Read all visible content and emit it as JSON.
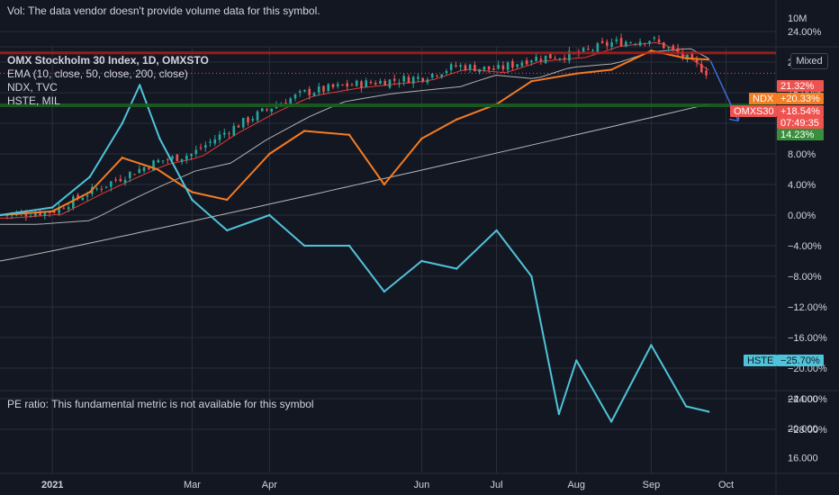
{
  "header": {
    "vol_notice": "Vol: The data vendor doesn't provide volume data for this symbol.",
    "volume_scale_label": "10M",
    "symbol_title": "OMX Stockholm 30 Index, 1D, OMXSTO",
    "ema_label": "EMA (10, close, 50, close, 200, close)",
    "ndx_label": "NDX, TVC",
    "hste_label": "HSTE, MIL",
    "mixed_button": "Mixed",
    "pe_notice": "PE ratio: This fundamental metric is not available for this symbol"
  },
  "colors": {
    "background": "#131722",
    "grid": "#2a2e39",
    "omx_up": "#26a69a",
    "omx_down": "#ef5350",
    "ndx": "#f57c22",
    "hste": "#4fc3d9",
    "ema_fast": "#e53935",
    "ema_mid": "#b0b0b0",
    "ema_slow": "#b8b8b8",
    "projection_arrow": "#3d6bd6",
    "resistance_line": "#b71c1c",
    "support_line": "#1b5e20"
  },
  "price_badges": {
    "omx_pct": "21.32%",
    "ndx_name": "NDX",
    "ndx_pct": "+20.33%",
    "omx_name": "OMXS30",
    "omx_change": "+18.54%",
    "omx_countdown": "07:49:35",
    "ema_pct": "14.23%",
    "hste_name": "HSTE",
    "hste_pct": "−25.70%"
  },
  "chart_data": {
    "type": "line",
    "x_axis": {
      "labels": [
        "2021",
        "Mar",
        "Apr",
        "Jun",
        "Jul",
        "Aug",
        "Sep",
        "Oct"
      ],
      "range": [
        "2020-12-14",
        "2021-10-21"
      ]
    },
    "y_axis": {
      "unit": "%",
      "scale": "percent",
      "ticks": [
        24,
        20,
        16,
        12,
        8,
        4,
        0,
        -4,
        -8,
        -12,
        -16,
        -20,
        -24,
        -28
      ],
      "tick_labels": [
        "24.00%",
        "20.00%",
        "16.00%",
        "12.00%",
        "8.00%",
        "4.00%",
        "0.00%",
        "−4.00%",
        "−8.00%",
        "−12.00%",
        "−16.00%",
        "−20.00%",
        "−24.00%",
        "−28.00%"
      ],
      "ylim": [
        -30,
        26
      ]
    },
    "pe_axis": {
      "ticks": [
        24,
        20,
        16
      ],
      "tick_labels": [
        "24.000",
        "20.000",
        "16.000"
      ]
    },
    "grid": true,
    "series": [
      {
        "name": "OMXS30",
        "style": "candles",
        "x": [
          "2020-12-14",
          "2021-01-04",
          "2021-01-19",
          "2021-02-01",
          "2021-02-15",
          "2021-03-01",
          "2021-03-15",
          "2021-04-01",
          "2021-04-15",
          "2021-05-03",
          "2021-05-17",
          "2021-06-01",
          "2021-06-15",
          "2021-07-01",
          "2021-07-15",
          "2021-08-02",
          "2021-08-16",
          "2021-09-01",
          "2021-09-15",
          "2021-09-24"
        ],
        "values": [
          0,
          0.5,
          3,
          5,
          7,
          8,
          11,
          14,
          16,
          17,
          17.5,
          18,
          19.5,
          19,
          20.5,
          21,
          22.5,
          23,
          20.5,
          18.54
        ]
      },
      {
        "name": "NDX",
        "style": "line",
        "x": [
          "2020-12-14",
          "2021-01-04",
          "2021-01-19",
          "2021-02-01",
          "2021-02-15",
          "2021-03-01",
          "2021-03-15",
          "2021-04-01",
          "2021-04-15",
          "2021-05-03",
          "2021-05-17",
          "2021-06-01",
          "2021-06-15",
          "2021-07-01",
          "2021-07-15",
          "2021-08-02",
          "2021-08-16",
          "2021-09-01",
          "2021-09-15",
          "2021-09-24"
        ],
        "values": [
          0,
          0.5,
          3,
          7.5,
          6,
          3,
          2,
          8,
          11,
          10.5,
          4,
          10,
          12.5,
          14.5,
          17.5,
          18.5,
          19,
          21.5,
          20.5,
          20.33
        ]
      },
      {
        "name": "HSTE",
        "style": "line",
        "x": [
          "2020-12-14",
          "2021-01-04",
          "2021-01-19",
          "2021-02-01",
          "2021-02-08",
          "2021-02-16",
          "2021-03-01",
          "2021-03-15",
          "2021-04-01",
          "2021-04-15",
          "2021-05-03",
          "2021-05-17",
          "2021-06-01",
          "2021-06-15",
          "2021-07-01",
          "2021-07-15",
          "2021-07-26",
          "2021-08-02",
          "2021-08-16",
          "2021-09-01",
          "2021-09-15",
          "2021-09-24"
        ],
        "values": [
          0,
          1,
          5,
          12,
          17,
          10,
          2,
          -2,
          0,
          -4,
          -4,
          -10,
          -6,
          -7,
          -2,
          -8,
          -26,
          -19,
          -27,
          -17,
          -25,
          -25.7
        ]
      }
    ],
    "annotations": [
      "Vol: The data vendor doesn't provide volume data for this symbol.",
      "PE ratio: This fundamental metric is not available for this symbol"
    ]
  }
}
